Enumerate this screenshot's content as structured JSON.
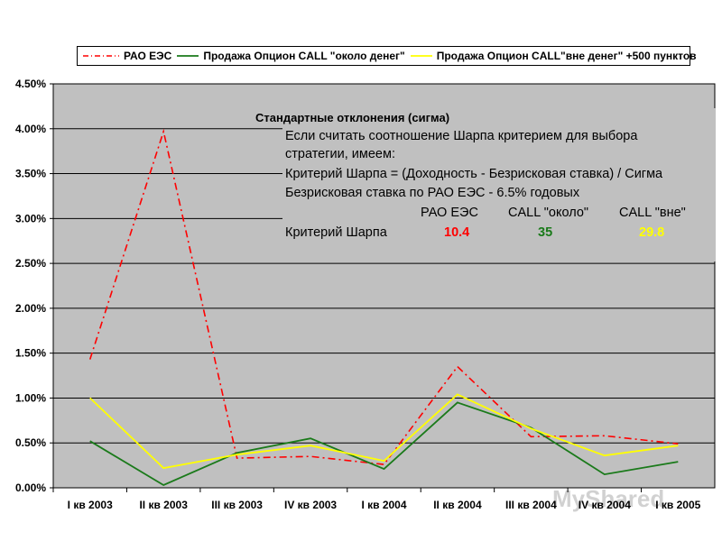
{
  "chart_data": {
    "type": "line",
    "categories": [
      "I кв 2003",
      "II кв 2003",
      "III кв 2003",
      "IV кв 2003",
      "I кв 2004",
      "II кв 2004",
      "III кв 2004",
      "IV кв 2004",
      "I кв 2005"
    ],
    "ylim": [
      0,
      4.5
    ],
    "yticks": [
      "0.00%",
      "0.50%",
      "1.00%",
      "1.50%",
      "2.00%",
      "2.50%",
      "3.00%",
      "3.50%",
      "4.00%",
      "4.50%"
    ],
    "grid": true,
    "legend_position": "top",
    "series": [
      {
        "name": "РАО ЕЭС",
        "color": "#ff0000",
        "dash": "dash-dot",
        "values": [
          1.43,
          3.97,
          0.33,
          0.35,
          0.26,
          1.35,
          0.57,
          0.58,
          0.49
        ]
      },
      {
        "name": "Продажа Опцион CALL \"около денег\"",
        "color": "#1a7a1a",
        "dash": "solid",
        "values": [
          0.52,
          0.03,
          0.39,
          0.55,
          0.21,
          0.95,
          0.67,
          0.15,
          0.29
        ]
      },
      {
        "name": "Продажа Опцион CALL\"вне денег\" +500 пунктов",
        "color": "#ffff00",
        "dash": "solid",
        "values": [
          1.0,
          0.22,
          0.37,
          0.47,
          0.3,
          1.04,
          0.66,
          0.36,
          0.47
        ]
      }
    ],
    "annotation": {
      "title": "Стандартные отклонения (сигма)",
      "lines": [
        "Если считать соотношение Шарпа критерием для выбора",
        "стратегии, имеем:",
        "Критерий Шарпа = (Доходность - Безрисковая ставка) / Сигма",
        "Безрисковая ставка по РАО ЕЭС - 6.5% годовых"
      ],
      "table_headers": [
        "РАО ЕЭС",
        "CALL \"около\"",
        "CALL \"вне\""
      ],
      "row_label": "Критерий Шарпа",
      "row_values": [
        "10.4",
        "35",
        "29.8"
      ],
      "row_colors": [
        "#ff0000",
        "#1a7a1a",
        "#ffff00"
      ]
    }
  },
  "watermark": "MyShared",
  "colors": {
    "plot_bg": "#c0c0c0",
    "grid": "#000000"
  }
}
